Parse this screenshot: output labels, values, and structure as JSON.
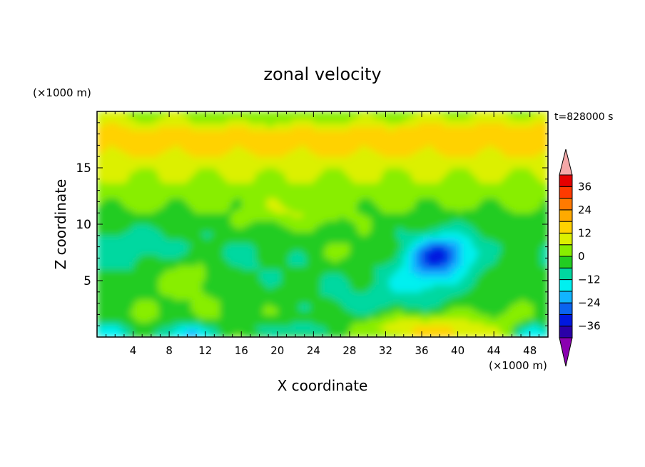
{
  "chart_data": {
    "type": "heatmap",
    "title": "zonal velocity",
    "xlabel": "X coordinate",
    "ylabel": "Z coordinate",
    "x_units": "(×1000 m)",
    "y_units": "(×1000 m)",
    "time_label": "t=828000 s",
    "xlim": [
      0,
      50
    ],
    "ylim": [
      0,
      20
    ],
    "xticks": [
      4,
      8,
      12,
      16,
      20,
      24,
      28,
      32,
      36,
      40,
      44,
      48
    ],
    "yticks": [
      5,
      10,
      15
    ],
    "levels": [
      -42,
      -36,
      -30,
      -24,
      -18,
      -12,
      -6,
      0,
      6,
      12,
      18,
      24,
      30,
      36,
      42
    ],
    "colorbar_labels": [
      -36,
      -24,
      -12,
      0,
      12,
      24,
      36
    ],
    "colorbar_extend": "both",
    "colors": [
      "#8a00b0",
      "#2a00a8",
      "#0018e0",
      "#0a64f0",
      "#12b4ff",
      "#00f0f0",
      "#00d8a0",
      "#22cc22",
      "#88ee00",
      "#dcf000",
      "#ffd200",
      "#ffaa00",
      "#ff7a00",
      "#ff3a00",
      "#e60000",
      "#f4a8a8"
    ],
    "field_description_values": {
      "upper_jet_max": 18,
      "mid_cyan_min": -12,
      "cold_core_min": -27,
      "surface_warm_max": 18,
      "surface_cold_min": -24
    }
  }
}
